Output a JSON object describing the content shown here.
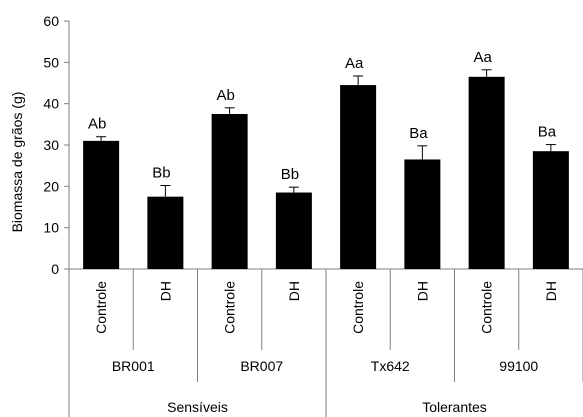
{
  "chart_data": {
    "type": "bar",
    "ylabel": "Biomassa de grãos (g)",
    "ylim": [
      0,
      60
    ],
    "yticks": [
      "0",
      "10",
      "20",
      "30",
      "40",
      "50",
      "60"
    ],
    "grid": false,
    "bar_color": "#000000",
    "errorbar_color": "#000000",
    "categories": [
      "Controle",
      "DH",
      "Controle",
      "DH",
      "Controle",
      "DH",
      "Controle",
      "DH"
    ],
    "values": [
      31.0,
      17.5,
      37.5,
      18.5,
      44.5,
      26.5,
      46.5,
      28.5
    ],
    "errors": [
      1.0,
      2.7,
      1.5,
      1.3,
      2.2,
      3.3,
      1.7,
      1.6
    ],
    "labels": [
      "Ab",
      "Bb",
      "Ab",
      "Bb",
      "Aa",
      "Ba",
      "Aa",
      "Ba"
    ],
    "genotypes": [
      "BR001",
      "BR007",
      "Tx642",
      "99100"
    ],
    "groups": [
      "Sensíveis",
      "Tolerantes"
    ]
  }
}
